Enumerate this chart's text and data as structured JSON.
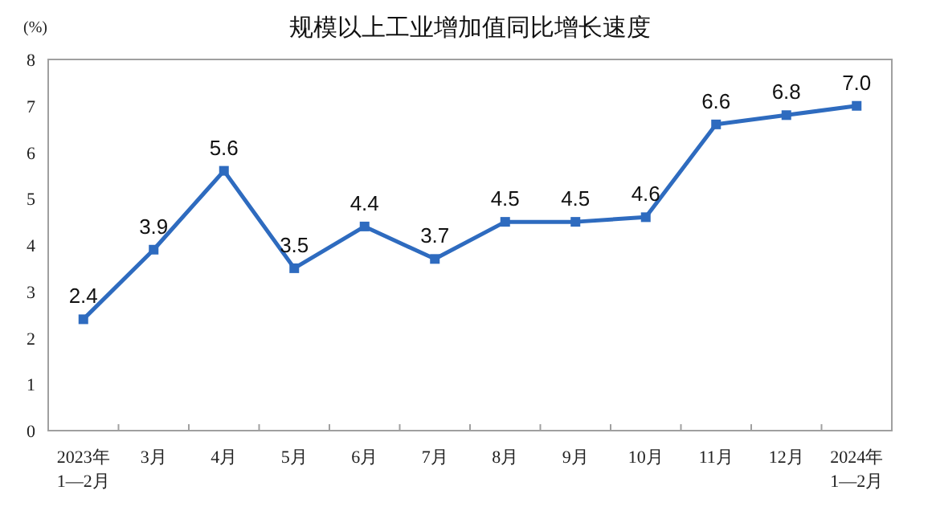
{
  "chart_data": {
    "type": "line",
    "title": "规模以上工业增加值同比增长速度",
    "ylabel": "(%)",
    "categories": [
      "2023年\n1—2月",
      "3月",
      "4月",
      "5月",
      "6月",
      "7月",
      "8月",
      "9月",
      "10月",
      "11月",
      "12月",
      "2024年\n1—2月"
    ],
    "series": [
      {
        "color": "#2e6bbf",
        "values": [
          2.4,
          3.9,
          5.6,
          3.5,
          4.4,
          3.7,
          4.5,
          4.5,
          4.6,
          6.6,
          6.8,
          7.0
        ]
      }
    ],
    "value_labels": [
      "2.4",
      "3.9",
      "5.6",
      "3.5",
      "4.4",
      "3.7",
      "4.5",
      "4.5",
      "4.6",
      "6.6",
      "6.8",
      "7.0"
    ],
    "ylim": [
      0,
      8
    ],
    "yticks": [
      0,
      1,
      2,
      3,
      4,
      5,
      6,
      7,
      8
    ],
    "grid": false,
    "marker": "square",
    "line_style": "solid"
  }
}
